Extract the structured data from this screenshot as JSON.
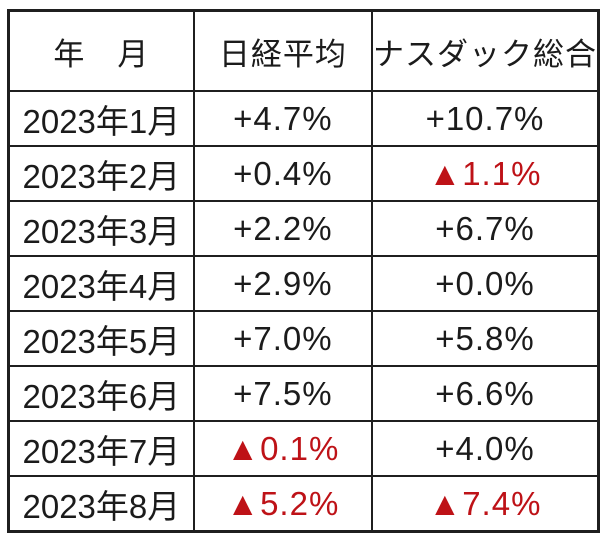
{
  "page": {
    "background": "#ffffff"
  },
  "table": {
    "headers": {
      "month": "年　月",
      "nikkei": "日経平均",
      "nasdaq": "ナスダック総合"
    },
    "rows": [
      {
        "month": "2023年1月",
        "nikkei": "+4.7%",
        "nasdaq": "+10.7%"
      },
      {
        "month": "2023年2月",
        "nikkei": "+0.4%",
        "nasdaq": "▲1.1%"
      },
      {
        "month": "2023年3月",
        "nikkei": "+2.2%",
        "nasdaq": "+6.7%"
      },
      {
        "month": "2023年4月",
        "nikkei": "+2.9%",
        "nasdaq": "+0.0%"
      },
      {
        "month": "2023年5月",
        "nikkei": "+7.0%",
        "nasdaq": "+5.8%"
      },
      {
        "month": "2023年6月",
        "nikkei": "+7.5%",
        "nasdaq": "+6.6%"
      },
      {
        "month": "2023年7月",
        "nikkei": "▲0.1%",
        "nasdaq": "+4.0%"
      },
      {
        "month": "2023年8月",
        "nikkei": "▲5.2%",
        "nasdaq": "▲7.4%"
      }
    ],
    "negative_marker": "▲",
    "colors": {
      "text": "#1b1b1b",
      "negative_text": "#be1217",
      "border": "#1f1f1f",
      "background": "#ffffff"
    }
  },
  "chart_data": {
    "type": "table",
    "title": "",
    "columns": [
      "年　月",
      "日経平均",
      "ナスダック総合"
    ],
    "categories": [
      "2023年1月",
      "2023年2月",
      "2023年3月",
      "2023年4月",
      "2023年5月",
      "2023年6月",
      "2023年7月",
      "2023年8月"
    ],
    "series": [
      {
        "name": "日経平均",
        "values": [
          4.7,
          0.4,
          2.2,
          2.9,
          7.0,
          7.5,
          -0.1,
          -5.2
        ],
        "unit": "%"
      },
      {
        "name": "ナスダック総合",
        "values": [
          10.7,
          -1.1,
          6.7,
          0.0,
          5.8,
          6.6,
          4.0,
          -7.4
        ],
        "unit": "%"
      }
    ],
    "negative_marker": "▲",
    "layout": {
      "grid": true,
      "header_row": true,
      "negative_values_red": true
    }
  }
}
